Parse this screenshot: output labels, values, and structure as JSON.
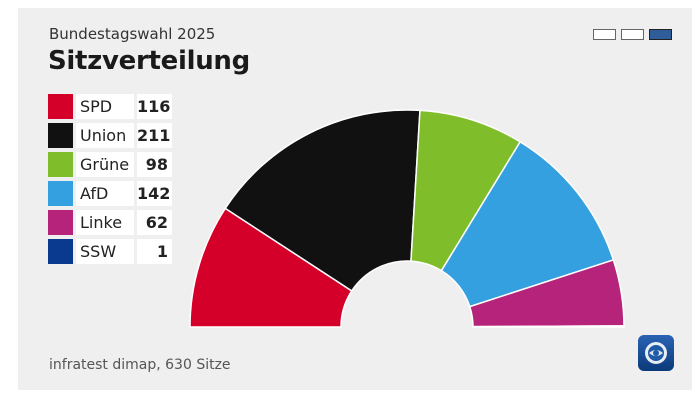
{
  "header": {
    "supertitle": "Bundestagswahl 2025",
    "title": "Sitzverteilung"
  },
  "source": "infratest dimap, 630 Sitze",
  "logo_icon": "tagesschau-logo-icon",
  "chart_data": {
    "type": "pie",
    "subtype": "semicircle-seat-distribution",
    "title": "Sitzverteilung",
    "total_seats": 630,
    "legend_position": "left",
    "categories": [
      "SPD",
      "Union",
      "Grüne",
      "AfD",
      "Linke",
      "SSW"
    ],
    "values": [
      116,
      211,
      98,
      142,
      62,
      1
    ],
    "colors": [
      "#d5002a",
      "#111111",
      "#7fbd2b",
      "#34a0df",
      "#b5247a",
      "#0a3a8f"
    ]
  }
}
